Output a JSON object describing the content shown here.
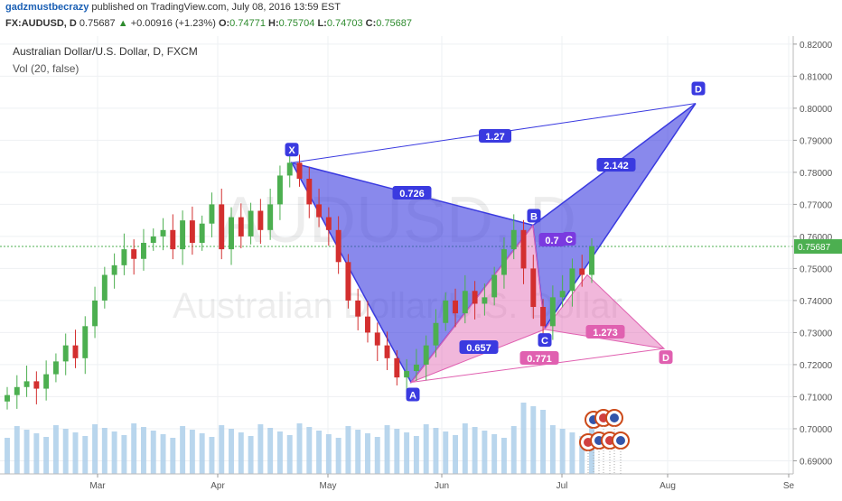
{
  "header": {
    "author": "gadzmustbecrazy",
    "published_text": "published on TradingView.com, July 08, 2016 13:59 EST",
    "symbol": "FX:AUDUSD, D",
    "last": "0.75687",
    "change": "+0.00916 (+1.23%)",
    "open_label": "O:",
    "open": "0.74771",
    "high_label": "H:",
    "high": "0.75704",
    "low_label": "L:",
    "low": "0.74703",
    "close_label": "C:",
    "close": "0.75687"
  },
  "legend": {
    "title": "Australian Dollar/U.S. Dollar, D, FXCM",
    "indicator": "Vol (20, false)"
  },
  "watermark": {
    "symbol": "AUDUSD, D",
    "name": "Australian Dollar/U.S. Dollar"
  },
  "colors": {
    "up": "#4caf50",
    "down": "#d32f2f",
    "blue_pattern": "#3a3ae0",
    "pink_pattern": "#e060b0",
    "volume": "#a8cce8",
    "price_line": "#4caf50"
  },
  "chart_data": {
    "type": "candlestick",
    "x_axis_labels": [
      "Mar",
      "Apr",
      "May",
      "Jun",
      "Jul",
      "Aug",
      "Se"
    ],
    "y_axis_labels": [
      "0.82000",
      "0.81000",
      "0.80000",
      "0.79000",
      "0.78000",
      "0.77000",
      "0.76000",
      "0.75000",
      "0.74000",
      "0.73000",
      "0.72000",
      "0.71000",
      "0.70000",
      "0.69000"
    ],
    "ylim": [
      0.6859,
      0.8225
    ],
    "current_price": "0.75687",
    "price_path": [
      0.7105,
      0.713,
      0.7148,
      0.7125,
      0.717,
      0.721,
      0.726,
      0.722,
      0.732,
      0.74,
      0.748,
      0.751,
      0.756,
      0.753,
      0.758,
      0.76,
      0.762,
      0.756,
      0.765,
      0.758,
      0.764,
      0.77,
      0.756,
      0.766,
      0.76,
      0.768,
      0.762,
      0.77,
      0.779,
      0.783,
      0.778,
      0.77,
      0.766,
      0.762,
      0.752,
      0.74,
      0.735,
      0.73,
      0.726,
      0.722,
      0.716,
      0.718,
      0.72,
      0.726,
      0.733,
      0.74,
      0.736,
      0.743,
      0.739,
      0.741,
      0.748,
      0.756,
      0.762,
      0.75,
      0.738,
      0.732,
      0.741,
      0.743,
      0.75,
      0.748,
      0.7569
    ],
    "patterns": [
      {
        "name": "blue bat",
        "color": "blue",
        "points": {
          "X": 0.783,
          "A": 0.7145,
          "B": 0.7635,
          "C": 0.7315,
          "D": 0.8015
        },
        "ratios": [
          "0.726",
          "0.657",
          "2.142",
          "1.27",
          "0.7",
          "C"
        ]
      },
      {
        "name": "pink",
        "color": "pink",
        "points": {
          "A": 0.7145,
          "B": 0.7635,
          "C": 0.748,
          "D": 0.725
        },
        "ratios": [
          "0.771",
          "1.273"
        ]
      }
    ]
  }
}
